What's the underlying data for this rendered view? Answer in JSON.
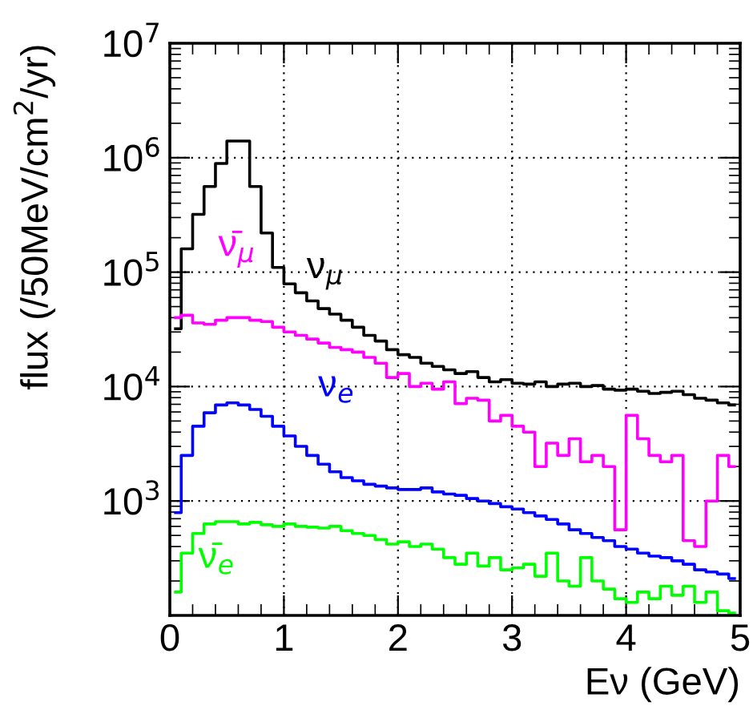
{
  "chart_data": {
    "type": "step",
    "xlabel": "Eν (GeV)",
    "ylabel": "flux (/50MeV/cm$^{2}$/yr)",
    "log": "y",
    "grid": true,
    "xlim": [
      0,
      5
    ],
    "xticks": [
      0,
      1,
      2,
      3,
      4,
      5
    ],
    "ylim": [
      100,
      10000000
    ],
    "yticks": [
      {
        "value": 1000,
        "label": "10$^{3}$"
      },
      {
        "value": 10000,
        "label": "10$^{4}$"
      },
      {
        "value": 100000,
        "label": "10$^{5}$"
      },
      {
        "value": 1000000,
        "label": "10$^{6}$"
      },
      {
        "value": 10000000,
        "label": "10$^{7}$"
      }
    ],
    "x": [
      0.05,
      0.15,
      0.25,
      0.35,
      0.45,
      0.55,
      0.65,
      0.75,
      0.85,
      0.95,
      1.05,
      1.15,
      1.25,
      1.35,
      1.45,
      1.55,
      1.65,
      1.75,
      1.85,
      1.95,
      2.05,
      2.15,
      2.25,
      2.35,
      2.45,
      2.55,
      2.65,
      2.75,
      2.85,
      2.95,
      3.05,
      3.15,
      3.25,
      3.35,
      3.45,
      3.55,
      3.65,
      3.75,
      3.85,
      3.95,
      4.05,
      4.15,
      4.25,
      4.35,
      4.45,
      4.55,
      4.65,
      4.75,
      4.85,
      4.95
    ],
    "series": [
      {
        "name": "ν$_{μ}$",
        "color": "#000000",
        "values": [
          32000,
          160000,
          320000,
          560000,
          890000,
          1400000,
          1400000,
          560000,
          220000,
          110000,
          79000,
          66000,
          56000,
          48000,
          43000,
          38000,
          33000,
          28000,
          25000,
          21000,
          19000,
          18000,
          16000,
          15000,
          14000,
          13000,
          13500,
          12000,
          11000,
          11500,
          10700,
          10500,
          11000,
          10000,
          10500,
          10700,
          10000,
          10200,
          9500,
          9300,
          9500,
          9100,
          8700,
          8900,
          9100,
          8500,
          7900,
          7600,
          7200,
          6900
        ]
      },
      {
        "name": "ν̄$_{μ}$",
        "color": "#ff00ff",
        "values": [
          40000,
          42000,
          36000,
          35000,
          38000,
          40000,
          40000,
          38000,
          37000,
          33000,
          30000,
          28000,
          26000,
          24000,
          22000,
          21000,
          20000,
          18000,
          16000,
          12000,
          13000,
          10000,
          10700,
          9500,
          11000,
          7100,
          7900,
          7600,
          5000,
          5600,
          4500,
          4000,
          2000,
          3200,
          2500,
          3500,
          2200,
          2500,
          2000,
          560,
          5600,
          3500,
          2500,
          2200,
          2500,
          450,
          400,
          1000,
          2500,
          2000
        ]
      },
      {
        "name": "ν$_{e}$",
        "color": "#0000ff",
        "values": [
          790,
          2500,
          4500,
          5900,
          6900,
          7200,
          6900,
          6300,
          5500,
          4500,
          3700,
          3000,
          2500,
          2100,
          1800,
          1600,
          1500,
          1400,
          1350,
          1300,
          1260,
          1260,
          1300,
          1200,
          1150,
          1120,
          1050,
          1000,
          950,
          890,
          850,
          790,
          740,
          690,
          630,
          560,
          520,
          480,
          450,
          400,
          380,
          350,
          330,
          320,
          300,
          280,
          250,
          240,
          230,
          210
        ]
      },
      {
        "name": "ν̄$_{e}$",
        "color": "#00ff00",
        "values": [
          160,
          350,
          520,
          630,
          660,
          660,
          630,
          650,
          620,
          600,
          630,
          600,
          590,
          580,
          600,
          550,
          520,
          500,
          460,
          420,
          440,
          400,
          420,
          380,
          320,
          280,
          350,
          270,
          320,
          250,
          260,
          280,
          220,
          350,
          200,
          180,
          320,
          200,
          170,
          140,
          130,
          160,
          140,
          180,
          150,
          180,
          130,
          160,
          110,
          105
        ]
      }
    ]
  }
}
